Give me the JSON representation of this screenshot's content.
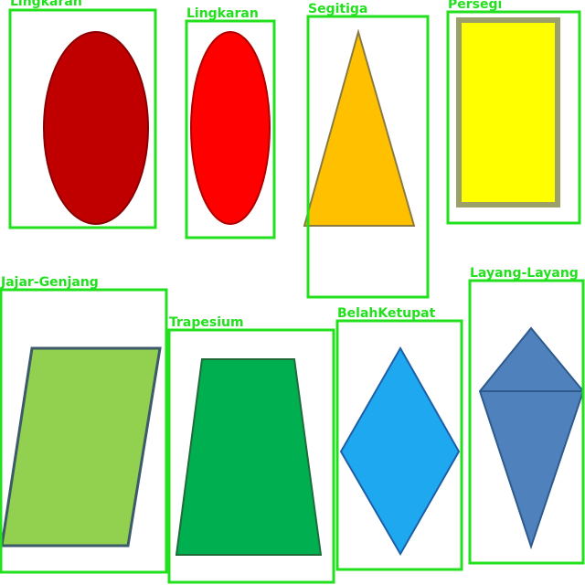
{
  "detections": [
    {
      "label": "Lingkaran",
      "shape": "ellipse",
      "fill": "#c00000"
    },
    {
      "label": "Lingkaran",
      "shape": "ellipse",
      "fill": "#ff0000"
    },
    {
      "label": "Segitiga",
      "shape": "triangle",
      "fill": "#ffc000"
    },
    {
      "label": "Persegi",
      "shape": "rectangle",
      "fill": "#ffff00"
    },
    {
      "label": "Jajar-Genjang",
      "shape": "parallelogram",
      "fill": "#92d050"
    },
    {
      "label": "Trapesium",
      "shape": "trapezoid",
      "fill": "#00b050"
    },
    {
      "label": "BelahKetupat",
      "shape": "rhombus",
      "fill": "#1ea8f0"
    },
    {
      "label": "Layang-Layang",
      "shape": "kite",
      "fill": "#4f81bd"
    }
  ],
  "box_color": "#22e01e"
}
